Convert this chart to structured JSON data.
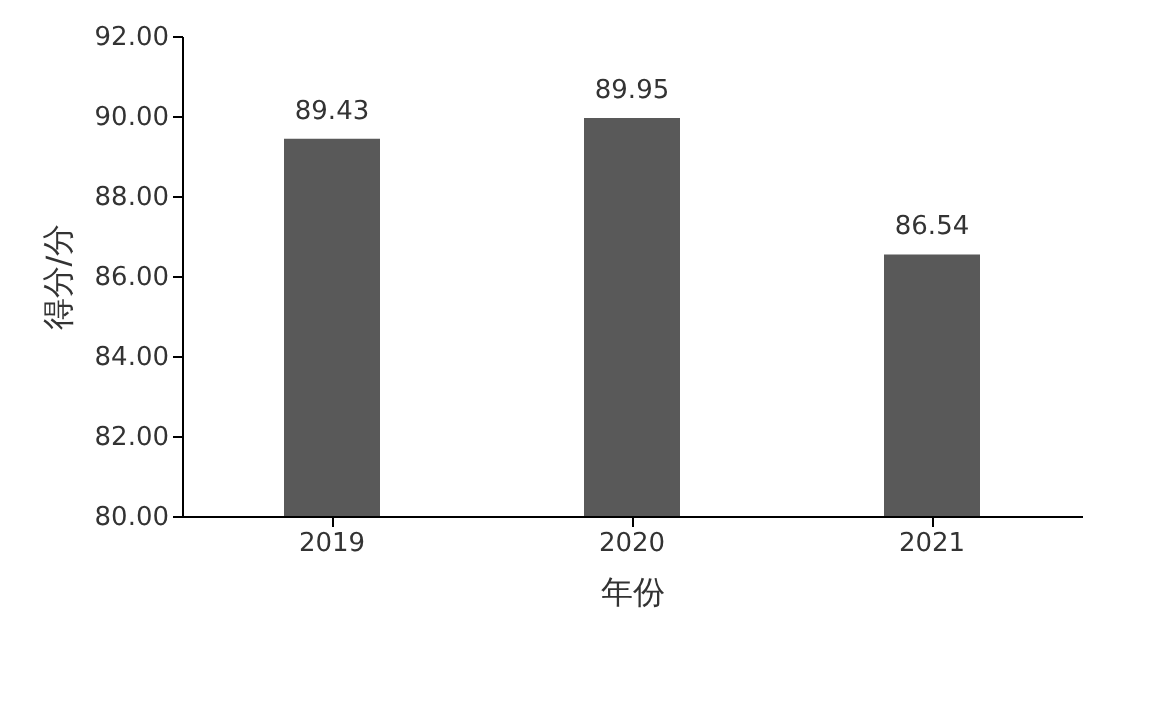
{
  "chart_data": {
    "type": "bar",
    "xlabel": "年份",
    "ylabel": "得分/分",
    "categories": [
      "2019",
      "2020",
      "2021"
    ],
    "values": [
      89.43,
      89.95,
      86.54
    ],
    "color": "#595959",
    "ylim": [
      80,
      92
    ],
    "yticks": [
      {
        "value": 80,
        "label": "80.00"
      },
      {
        "value": 82,
        "label": "82.00"
      },
      {
        "value": 84,
        "label": "84.00"
      },
      {
        "value": 86,
        "label": "86.00"
      },
      {
        "value": 88,
        "label": "88.00"
      },
      {
        "value": 90,
        "label": "90.00"
      },
      {
        "value": 92,
        "label": "92.00"
      }
    ],
    "data_labels": true,
    "grid": false
  }
}
